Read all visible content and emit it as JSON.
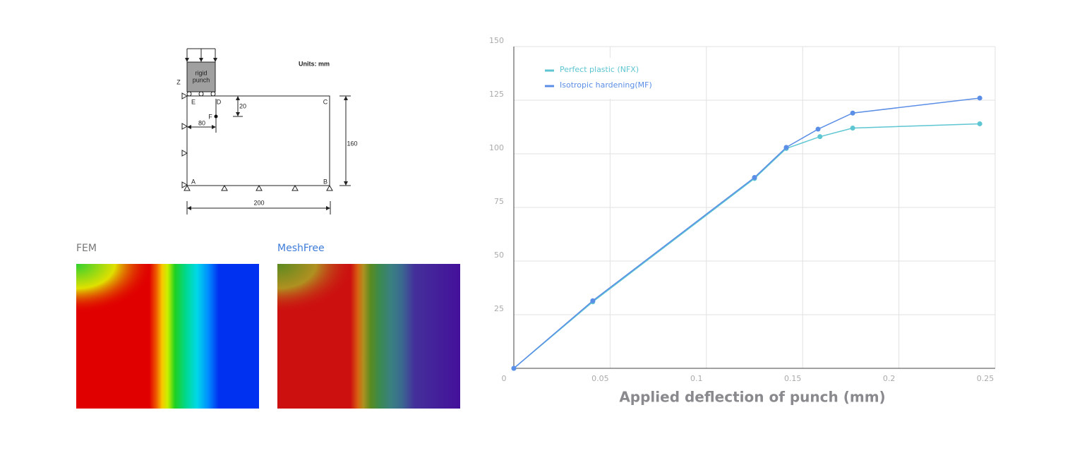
{
  "diagram": {
    "units": "Units: mm",
    "punch_line1": "rigid",
    "punch_line2": "punch",
    "labels": {
      "z": "Z",
      "e": "E",
      "d": "D",
      "c": "C",
      "f": "F",
      "a": "A",
      "b": "B"
    },
    "dims": {
      "df": "20",
      "ef": "80",
      "height": "160",
      "width": "200"
    }
  },
  "panels": {
    "fem": "FEM",
    "meshfree": "MeshFree"
  },
  "chart_data": {
    "type": "line",
    "x_label": "Applied deflection of punch (mm)",
    "xlim": [
      0,
      0.25
    ],
    "ylim": [
      0,
      150
    ],
    "xticks": [
      0,
      0.05,
      0.1,
      0.15,
      0.2,
      0.25
    ],
    "yticks": [
      25,
      50,
      75,
      100,
      125,
      150
    ],
    "grid": true,
    "legend": "top-left",
    "series": [
      {
        "name": "Perfect plastic (NFX)",
        "color": "#5ec6d2",
        "x": [
          0,
          0.041,
          0.125,
          0.1415,
          0.159,
          0.176,
          0.242
        ],
        "values": [
          0,
          31,
          88.5,
          102.5,
          108,
          112,
          114
        ]
      },
      {
        "name": "Isotropic hardening(MF)",
        "color": "#5b8ee6",
        "x": [
          0,
          0.041,
          0.125,
          0.1415,
          0.158,
          0.176,
          0.242
        ],
        "values": [
          0,
          31.5,
          89,
          103,
          111.5,
          119,
          126
        ]
      }
    ]
  }
}
